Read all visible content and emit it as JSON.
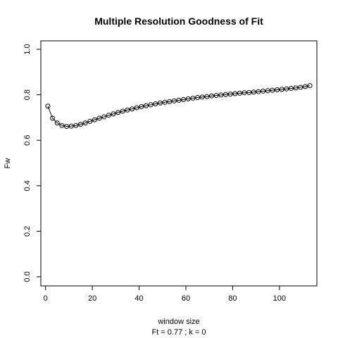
{
  "chart_data": {
    "type": "line",
    "title": "Multiple Resolution Goodness of Fit",
    "xlabel": "window size",
    "ylabel": "Fw",
    "subtitle": "Ft = 0.77 ; k =  0",
    "xlim": [
      -2,
      116
    ],
    "ylim": [
      0,
      1
    ],
    "xticks": [
      0,
      20,
      40,
      60,
      80,
      100
    ],
    "yticks": [
      "0.0",
      "0.2",
      "0.4",
      "0.6",
      "0.8",
      "1.0"
    ],
    "series": [
      {
        "x": [
          1,
          3,
          5,
          7,
          9,
          11,
          13,
          15,
          17,
          19,
          21,
          23,
          25,
          27,
          29,
          31,
          33,
          35,
          37,
          39,
          41,
          43,
          45,
          47,
          49,
          51,
          53,
          55,
          57,
          59,
          61,
          63,
          65,
          67,
          69,
          71,
          73,
          75,
          77,
          79,
          81,
          83,
          85,
          87,
          89,
          91,
          93,
          95,
          97,
          99,
          101,
          103,
          105,
          107,
          109,
          111,
          113
        ],
        "values": [
          0.75,
          0.697,
          0.676,
          0.665,
          0.661,
          0.662,
          0.665,
          0.67,
          0.676,
          0.683,
          0.69,
          0.697,
          0.703,
          0.71,
          0.716,
          0.722,
          0.728,
          0.733,
          0.738,
          0.743,
          0.748,
          0.752,
          0.756,
          0.76,
          0.764,
          0.767,
          0.77,
          0.773,
          0.776,
          0.779,
          0.782,
          0.785,
          0.788,
          0.79,
          0.792,
          0.795,
          0.797,
          0.799,
          0.801,
          0.803,
          0.805,
          0.807,
          0.809,
          0.81,
          0.812,
          0.814,
          0.816,
          0.818,
          0.82,
          0.822,
          0.824,
          0.826,
          0.828,
          0.83,
          0.833,
          0.836,
          0.84
        ]
      }
    ]
  }
}
